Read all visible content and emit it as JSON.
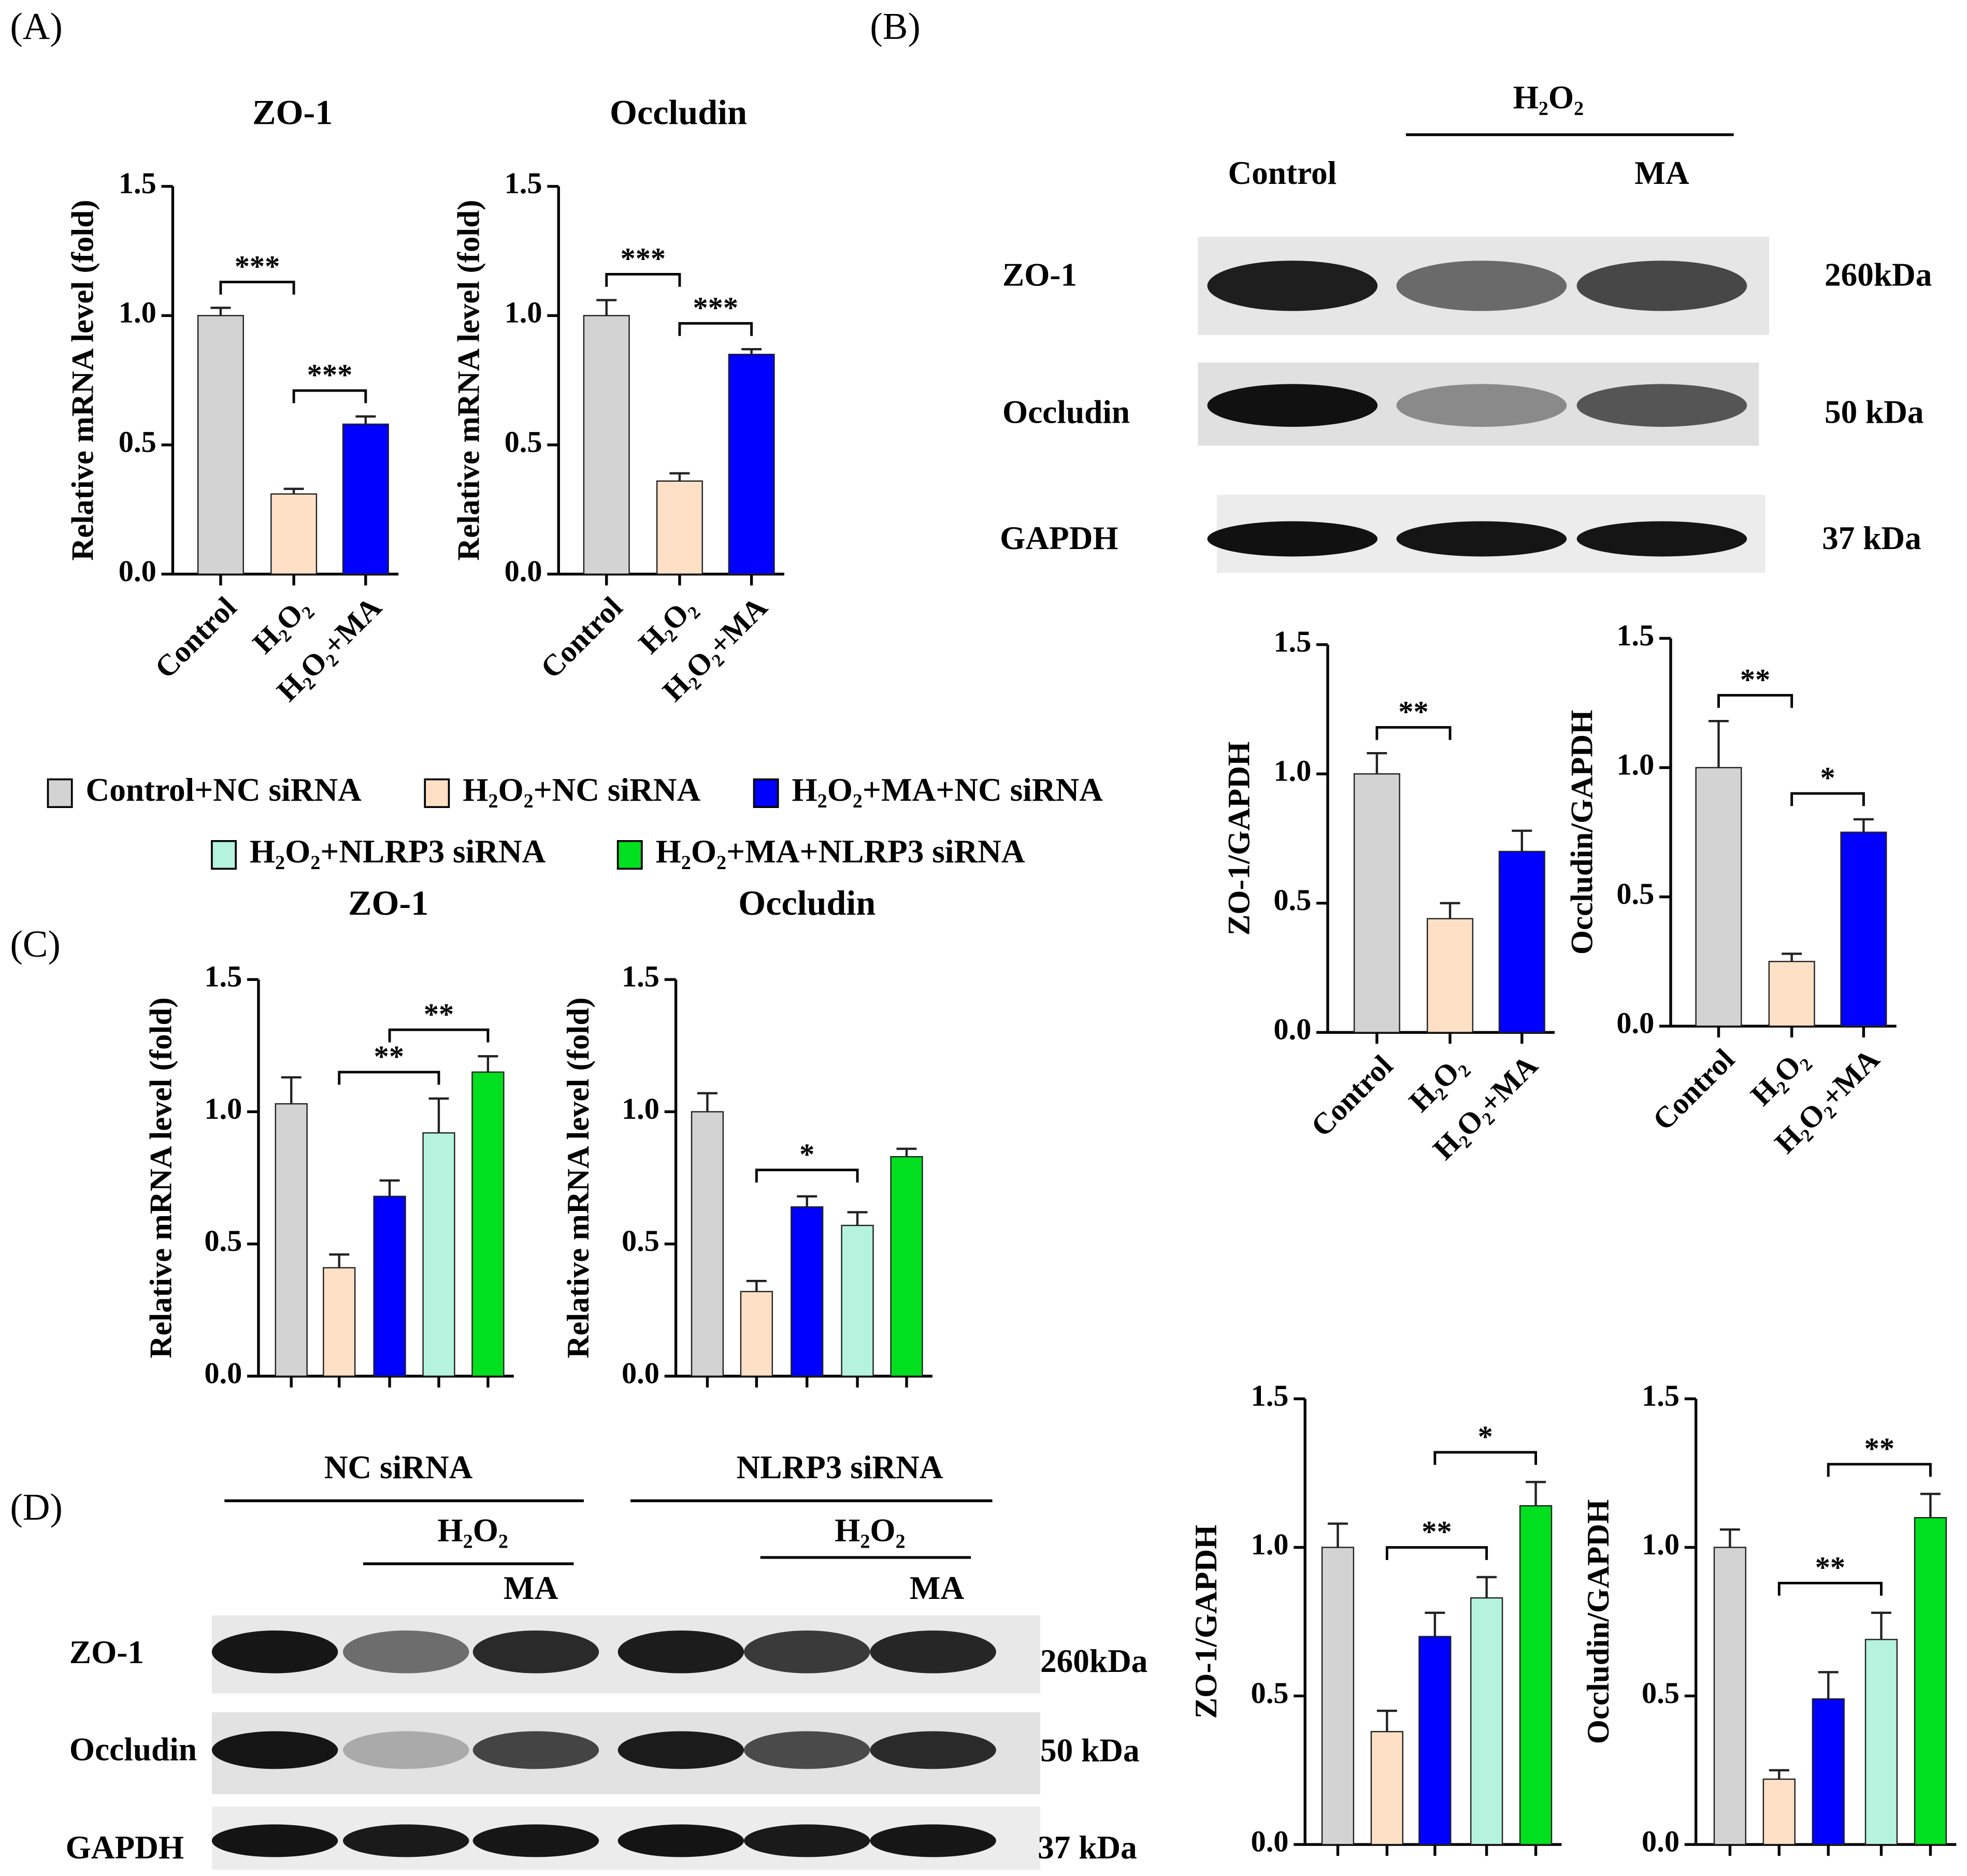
{
  "panel_labels": [
    "(A)",
    "(B)",
    "(C)",
    "(D)"
  ],
  "legend": [
    {
      "name": "Control+NC siRNA",
      "color": "#d3d3d3"
    },
    {
      "name": "H₂O₂+NC siRNA",
      "color": "#fde0c5"
    },
    {
      "name": "H₂O₂+MA+NC siRNA",
      "color": "#0000ff"
    },
    {
      "name": "H₂O₂+NLRP3 siRNA",
      "color": "#b6f3df"
    },
    {
      "name": "H₂O₂+MA+NLRP3 siRNA",
      "color": "#00e01e"
    }
  ],
  "blot_b": {
    "header": "H₂O₂",
    "lanes": [
      "Control",
      "MA"
    ],
    "rows": [
      {
        "protein": "ZO-1",
        "size": "260kDa"
      },
      {
        "protein": "Occludin",
        "size": "50 kDa"
      },
      {
        "protein": "GAPDH",
        "size": "37 kDa"
      }
    ]
  },
  "blot_d": {
    "groups": [
      {
        "name": "NC siRNA",
        "treatment": "H₂O₂",
        "sub": "MA"
      },
      {
        "name": "NLRP3 siRNA",
        "treatment": "H₂O₂",
        "sub": "MA"
      }
    ],
    "rows": [
      {
        "protein": "ZO-1",
        "size": "260kDa"
      },
      {
        "protein": "Occludin",
        "size": "50 kDa"
      },
      {
        "protein": "GAPDH",
        "size": "37 kDa"
      }
    ]
  },
  "chart_data": [
    {
      "type": "bar",
      "title": "ZO-1",
      "y_label": "Relative mRNA level (fold)",
      "categories": [
        "Control",
        "H₂O₂",
        "H₂O₂+MA"
      ],
      "values": [
        1.0,
        0.31,
        0.58
      ],
      "errors": [
        0.03,
        0.02,
        0.03
      ],
      "colors": [
        "#d3d3d3",
        "#fde0c5",
        "#0000ff"
      ],
      "ylim": [
        0,
        1.5
      ],
      "yticks": [
        {
          "value": 0,
          "label": "0.0"
        },
        0.5,
        {
          "value": 1,
          "label": "1.0"
        },
        1.5
      ],
      "comparisons": [
        {
          "from": 0,
          "to": 1,
          "label": "***"
        },
        {
          "from": 1,
          "to": 2,
          "label": "***"
        }
      ]
    },
    {
      "type": "bar",
      "title": "Occludin",
      "y_label": "Relative mRNA level (fold)",
      "categories": [
        "Control",
        "H₂O₂",
        "H₂O₂+MA"
      ],
      "values": [
        1.0,
        0.36,
        0.85
      ],
      "errors": [
        0.06,
        0.03,
        0.02
      ],
      "colors": [
        "#d3d3d3",
        "#fde0c5",
        "#0000ff"
      ],
      "ylim": [
        0,
        1.5
      ],
      "yticks": [
        {
          "value": 0,
          "label": "0.0"
        },
        0.5,
        {
          "value": 1,
          "label": "1.0"
        },
        1.5
      ],
      "comparisons": [
        {
          "from": 0,
          "to": 1,
          "label": "***"
        },
        {
          "from": 1,
          "to": 2,
          "label": "***"
        }
      ]
    },
    {
      "type": "bar",
      "y_label": "ZO-1/GAPDH",
      "categories": [
        "Control",
        "H₂O₂",
        "H₂O₂+MA"
      ],
      "values": [
        1.0,
        0.44,
        0.7
      ],
      "errors": [
        0.08,
        0.06,
        0.08
      ],
      "colors": [
        "#d3d3d3",
        "#fde0c5",
        "#0000ff"
      ],
      "ylim": [
        0,
        1.5
      ],
      "yticks": [
        {
          "value": 0,
          "label": "0.0"
        },
        0.5,
        {
          "value": 1,
          "label": "1.0"
        },
        1.5
      ],
      "comparisons": [
        {
          "from": 0,
          "to": 1,
          "label": "**"
        }
      ]
    },
    {
      "type": "bar",
      "y_label": "Occludin/GAPDH",
      "categories": [
        "Control",
        "H₂O₂",
        "H₂O₂+MA"
      ],
      "values": [
        1.0,
        0.25,
        0.75
      ],
      "errors": [
        0.18,
        0.03,
        0.05
      ],
      "colors": [
        "#d3d3d3",
        "#fde0c5",
        "#0000ff"
      ],
      "ylim": [
        0,
        1.5
      ],
      "yticks": [
        {
          "value": 0,
          "label": "0.0"
        },
        0.5,
        {
          "value": 1,
          "label": "1.0"
        },
        1.5
      ],
      "comparisons": [
        {
          "from": 0,
          "to": 1,
          "label": "**"
        },
        {
          "from": 1,
          "to": 2,
          "label": "*"
        }
      ]
    },
    {
      "type": "bar",
      "title": "ZO-1",
      "y_label": "Relative mRNA level (fold)",
      "values": [
        1.03,
        0.41,
        0.68,
        0.92,
        1.15
      ],
      "errors": [
        0.1,
        0.05,
        0.06,
        0.13,
        0.06
      ],
      "colors": [
        "#d3d3d3",
        "#fde0c5",
        "#0000ff",
        "#b6f3df",
        "#00e01e"
      ],
      "ylim": [
        0,
        1.5
      ],
      "yticks": [
        {
          "value": 0,
          "label": "0.0"
        },
        0.5,
        {
          "value": 1,
          "label": "1.0"
        },
        1.5
      ],
      "comparisons": [
        {
          "from": 1,
          "to": 3,
          "label": "**"
        },
        {
          "from": 2,
          "to": 4,
          "label": "**"
        }
      ]
    },
    {
      "type": "bar",
      "title": "Occludin",
      "y_label": "Relative mRNA level (fold)",
      "values": [
        1.0,
        0.32,
        0.64,
        0.57,
        0.83
      ],
      "errors": [
        0.07,
        0.04,
        0.04,
        0.05,
        0.03
      ],
      "colors": [
        "#d3d3d3",
        "#fde0c5",
        "#0000ff",
        "#b6f3df",
        "#00e01e"
      ],
      "ylim": [
        0,
        1.5
      ],
      "yticks": [
        {
          "value": 0,
          "label": "0.0"
        },
        0.5,
        {
          "value": 1,
          "label": "1.0"
        },
        1.5
      ],
      "comparisons": [
        {
          "from": 1,
          "to": 3,
          "label": "*"
        }
      ]
    },
    {
      "type": "bar",
      "y_label": "ZO-1/GAPDH",
      "values": [
        1.0,
        0.38,
        0.7,
        0.83,
        1.14
      ],
      "errors": [
        0.08,
        0.07,
        0.08,
        0.07,
        0.08
      ],
      "colors": [
        "#d3d3d3",
        "#fde0c5",
        "#0000ff",
        "#b6f3df",
        "#00e01e"
      ],
      "ylim": [
        0,
        1.5
      ],
      "yticks": [
        {
          "value": 0,
          "label": "0.0"
        },
        0.5,
        {
          "value": 1,
          "label": "1.0"
        },
        1.5
      ],
      "comparisons": [
        {
          "from": 1,
          "to": 3,
          "label": "**"
        },
        {
          "from": 2,
          "to": 4,
          "label": "*"
        }
      ]
    },
    {
      "type": "bar",
      "y_label": "Occludin/GAPDH",
      "values": [
        1.0,
        0.22,
        0.49,
        0.69,
        1.1
      ],
      "errors": [
        0.06,
        0.03,
        0.09,
        0.09,
        0.08
      ],
      "colors": [
        "#d3d3d3",
        "#fde0c5",
        "#0000ff",
        "#b6f3df",
        "#00e01e"
      ],
      "ylim": [
        0,
        1.5
      ],
      "yticks": [
        {
          "value": 0,
          "label": "0.0"
        },
        0.5,
        {
          "value": 1,
          "label": "1.0"
        },
        1.5
      ],
      "comparisons": [
        {
          "from": 1,
          "to": 3,
          "label": "**"
        },
        {
          "from": 2,
          "to": 4,
          "label": "**"
        }
      ]
    }
  ]
}
